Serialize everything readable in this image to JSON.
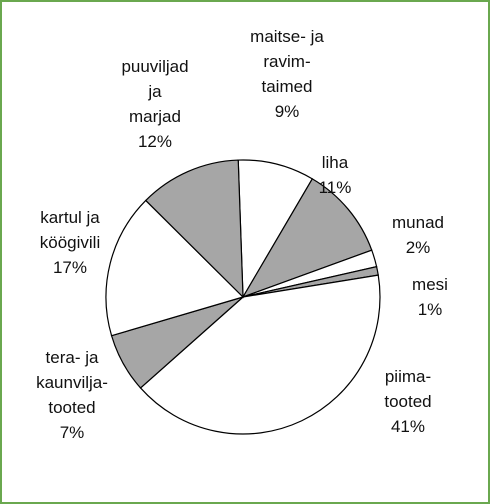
{
  "chart_data": {
    "type": "pie",
    "categories": [
      "maitse- ja\nravim-\ntaimed",
      "liha",
      "munad",
      "mesi",
      "piima-\ntooted",
      "tera- ja\nkaunvilja-\ntooted",
      "kartul ja\nköögivili",
      "puuviljad\nja\nmarjad"
    ],
    "values": [
      9,
      11,
      2,
      1,
      41,
      7,
      17,
      12
    ],
    "value_labels": [
      "9%",
      "11%",
      "2%",
      "1%",
      "41%",
      "7%",
      "17%",
      "12%"
    ],
    "colors": [
      "#ffffff",
      "#a6a6a6",
      "#ffffff",
      "#a6a6a6",
      "#ffffff",
      "#a6a6a6",
      "#ffffff",
      "#a6a6a6"
    ]
  }
}
